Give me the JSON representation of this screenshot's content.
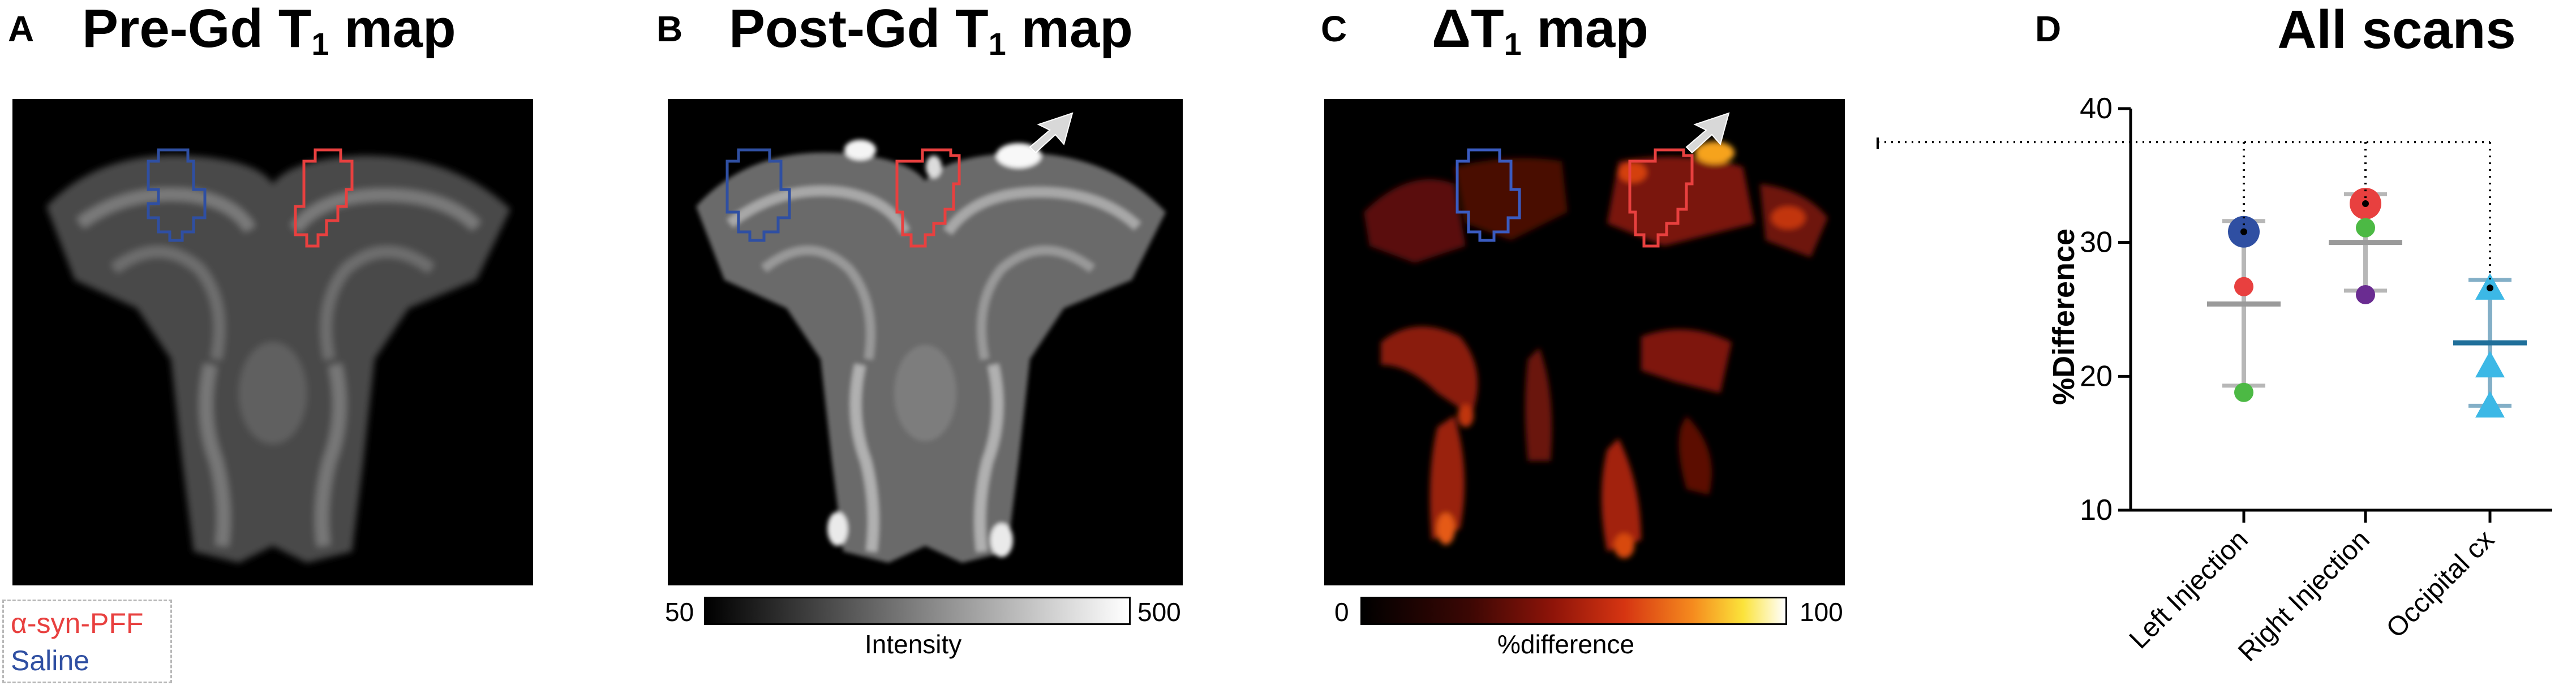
{
  "panels": {
    "a": {
      "letter": "A",
      "title_main": "Pre-Gd T",
      "title_sub": "1",
      "title_tail": " map"
    },
    "b": {
      "letter": "B",
      "title_main": "Post-Gd T",
      "title_sub": "1",
      "title_tail": " map"
    },
    "c": {
      "letter": "C",
      "title_main": "ΔT",
      "title_sub": "1",
      "title_tail": " map"
    },
    "d": {
      "letter": "D",
      "title": "All scans"
    }
  },
  "legend": {
    "pff_label": "α-syn-PFF",
    "saline_label": "Saline",
    "pff_color": "#e8403f",
    "saline_color": "#2f4fa2"
  },
  "colorbar_b": {
    "min": "50",
    "max": "500",
    "label": "Intensity"
  },
  "colorbar_c": {
    "min": "0",
    "max": "100",
    "label": "%difference"
  },
  "chart_data": {
    "type": "scatter",
    "title": "All scans",
    "ylabel": "%Difference",
    "xlabel": "",
    "categories": [
      "Left Injection",
      "Right Injection",
      "Occipital cx"
    ],
    "ylim": [
      10,
      40
    ],
    "yticks": [
      "10",
      "20",
      "30",
      "40"
    ],
    "points": {
      "Left Injection": [
        {
          "value": 30.8,
          "color": "#2f4fa2",
          "marker": "circle-large"
        },
        {
          "value": 26.7,
          "color": "#e8403f",
          "marker": "circle"
        },
        {
          "value": 18.8,
          "color": "#4cb944",
          "marker": "circle"
        }
      ],
      "Right Injection": [
        {
          "value": 32.9,
          "color": "#e8403f",
          "marker": "circle-large"
        },
        {
          "value": 31.1,
          "color": "#4cb944",
          "marker": "circle"
        },
        {
          "value": 26.1,
          "color": "#6a2c91",
          "marker": "circle"
        }
      ],
      "Occipital cx": [
        {
          "value": 26.6,
          "color": "#3cb8e6",
          "marker": "triangle"
        },
        {
          "value": 20.8,
          "color": "#3cb8e6",
          "marker": "triangle"
        },
        {
          "value": 17.8,
          "color": "#3cb8e6",
          "marker": "triangle"
        }
      ]
    },
    "summary": [
      {
        "category": "Left Injection",
        "mean": 25.4,
        "sd_low": 19.3,
        "sd_high": 31.6,
        "color": "#9a9a9a"
      },
      {
        "category": "Right Injection",
        "mean": 30.0,
        "sd_low": 26.4,
        "sd_high": 33.6,
        "color": "#9a9a9a"
      },
      {
        "category": "Occipital cx",
        "mean": 22.5,
        "sd_low": 17.8,
        "sd_high": 27.2,
        "color": "#1f6f9a"
      }
    ],
    "highlighted_scan_level": 37.5
  }
}
